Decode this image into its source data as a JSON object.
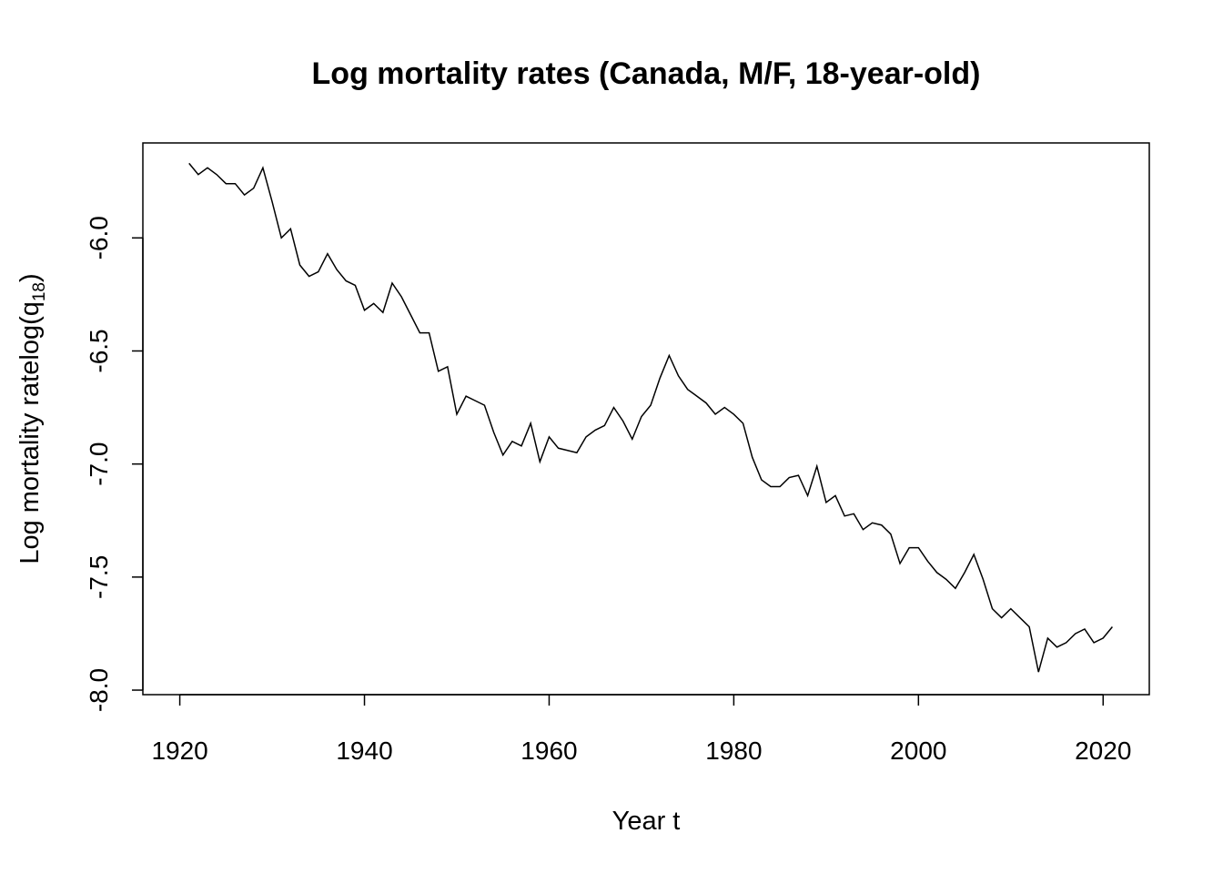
{
  "chart_data": {
    "type": "line",
    "title": "Log mortality rates (Canada, M/F, 18-year-old)",
    "xlabel": "Year t",
    "ylabel": {
      "prefix": "Log mortality ratelog(q",
      "subscript": "18",
      "suffix": ")"
    },
    "xlim": [
      1916,
      2025
    ],
    "ylim": [
      -8.02,
      -5.58
    ],
    "x_ticks": [
      1920,
      1940,
      1960,
      1980,
      2000,
      2020
    ],
    "y_ticks": [
      -8.0,
      -7.5,
      -7.0,
      -6.5,
      -6.0
    ],
    "x_tick_labels": [
      "1920",
      "1940",
      "1960",
      "1980",
      "2000",
      "2020"
    ],
    "y_tick_labels": [
      "-8.0",
      "-7.5",
      "-7.0",
      "-6.5",
      "-6.0"
    ],
    "line_color": "#000000",
    "grid": false,
    "x": [
      1921,
      1922,
      1923,
      1924,
      1925,
      1926,
      1927,
      1928,
      1929,
      1930,
      1931,
      1932,
      1933,
      1934,
      1935,
      1936,
      1937,
      1938,
      1939,
      1940,
      1941,
      1942,
      1943,
      1944,
      1945,
      1946,
      1947,
      1948,
      1949,
      1950,
      1951,
      1952,
      1953,
      1954,
      1955,
      1956,
      1957,
      1958,
      1959,
      1960,
      1961,
      1962,
      1963,
      1964,
      1965,
      1966,
      1967,
      1968,
      1969,
      1970,
      1971,
      1972,
      1973,
      1974,
      1975,
      1976,
      1977,
      1978,
      1979,
      1980,
      1981,
      1982,
      1983,
      1984,
      1985,
      1986,
      1987,
      1988,
      1989,
      1990,
      1991,
      1992,
      1993,
      1994,
      1995,
      1996,
      1997,
      1998,
      1999,
      2000,
      2001,
      2002,
      2003,
      2004,
      2005,
      2006,
      2007,
      2008,
      2009,
      2010,
      2011,
      2012,
      2013,
      2014,
      2015,
      2016,
      2017,
      2018,
      2019,
      2020,
      2021
    ],
    "y": [
      -5.67,
      -5.72,
      -5.69,
      -5.72,
      -5.76,
      -5.76,
      -5.81,
      -5.78,
      -5.69,
      -5.84,
      -6.0,
      -5.96,
      -6.12,
      -6.17,
      -6.15,
      -6.07,
      -6.14,
      -6.19,
      -6.21,
      -6.32,
      -6.29,
      -6.33,
      -6.2,
      -6.26,
      -6.34,
      -6.42,
      -6.42,
      -6.59,
      -6.57,
      -6.78,
      -6.7,
      -6.72,
      -6.74,
      -6.86,
      -6.96,
      -6.9,
      -6.92,
      -6.82,
      -6.99,
      -6.88,
      -6.93,
      -6.94,
      -6.95,
      -6.88,
      -6.85,
      -6.83,
      -6.75,
      -6.81,
      -6.89,
      -6.79,
      -6.74,
      -6.62,
      -6.52,
      -6.61,
      -6.67,
      -6.7,
      -6.73,
      -6.78,
      -6.75,
      -6.78,
      -6.82,
      -6.97,
      -7.07,
      -7.1,
      -7.1,
      -7.06,
      -7.05,
      -7.14,
      -7.01,
      -7.17,
      -7.14,
      -7.23,
      -7.22,
      -7.29,
      -7.26,
      -7.27,
      -7.31,
      -7.44,
      -7.37,
      -7.37,
      -7.43,
      -7.48,
      -7.51,
      -7.55,
      -7.48,
      -7.4,
      -7.51,
      -7.64,
      -7.68,
      -7.64,
      -7.68,
      -7.72,
      -7.92,
      -7.77,
      -7.81,
      -7.79,
      -7.75,
      -7.73,
      -7.79,
      -7.77,
      -7.72
    ]
  }
}
